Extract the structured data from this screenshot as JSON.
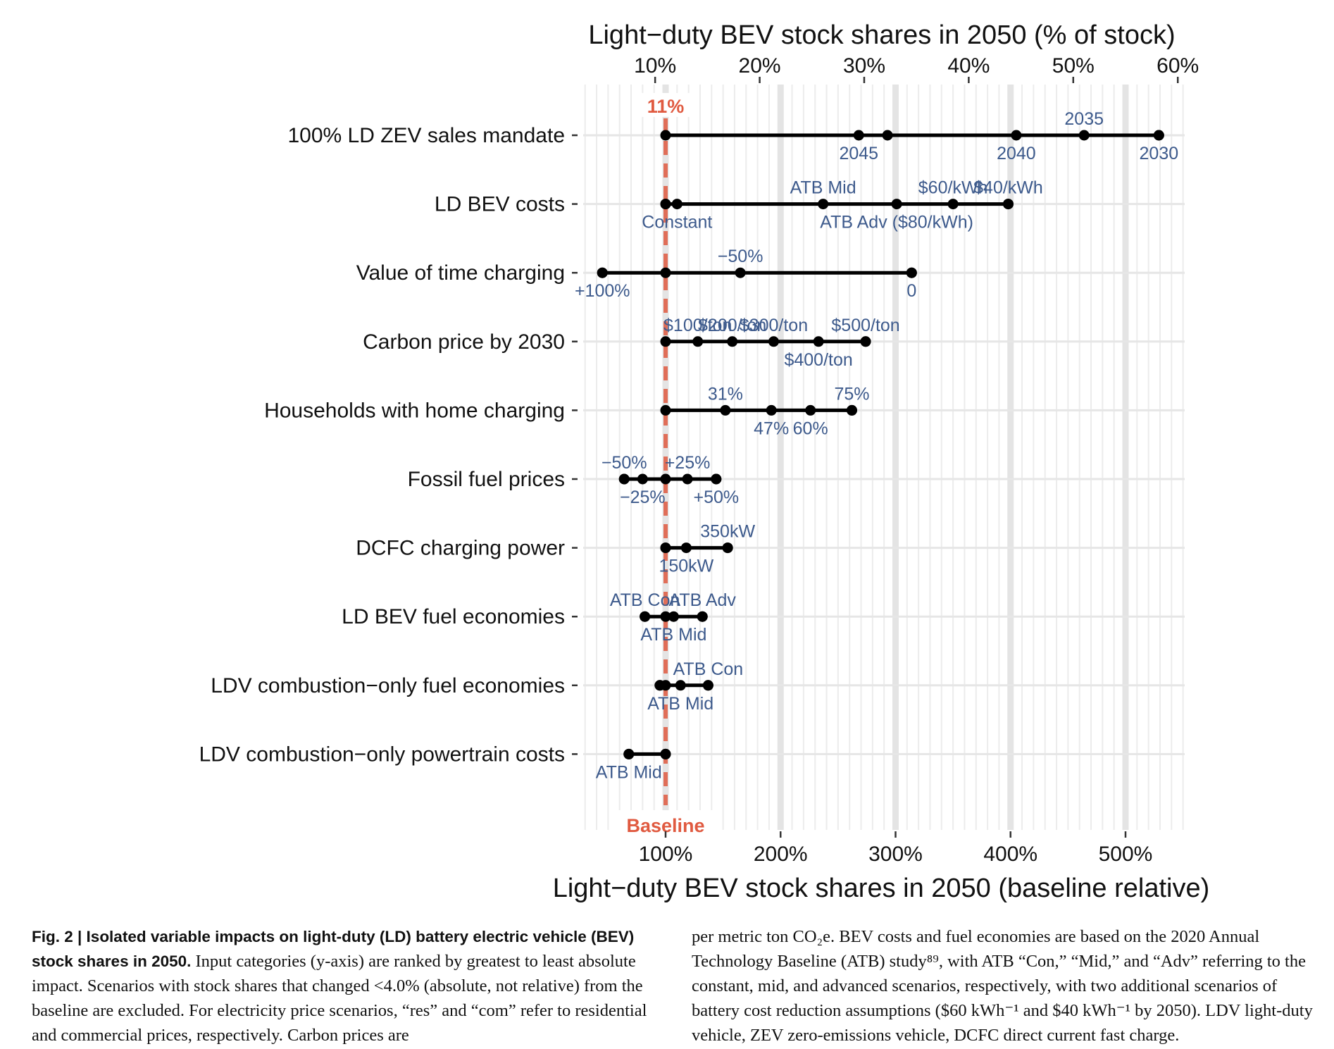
{
  "chart_data": {
    "type": "dot-range",
    "top_axis": {
      "title": "Light−duty BEV stock shares in 2050 (% of stock)",
      "ticks": [
        {
          "value": 10,
          "label": "10%"
        },
        {
          "value": 20,
          "label": "20%"
        },
        {
          "value": 30,
          "label": "30%"
        },
        {
          "value": 40,
          "label": "40%"
        },
        {
          "value": 50,
          "label": "50%"
        },
        {
          "value": 60,
          "label": "60%"
        }
      ]
    },
    "bottom_axis": {
      "title": "Light−duty BEV stock shares in 2050 (baseline relative)",
      "ticks": [
        {
          "value": 100,
          "label": "100%"
        },
        {
          "value": 200,
          "label": "200%"
        },
        {
          "value": 300,
          "label": "300%"
        },
        {
          "value": 400,
          "label": "400%"
        },
        {
          "value": 500,
          "label": "500%"
        }
      ],
      "range": [
        25,
        555
      ]
    },
    "baseline": {
      "value": 100,
      "top_label": "11%",
      "bottom_label": "Baseline",
      "color": "#e05a40"
    },
    "rows": [
      {
        "category": "100% LD ZEV sales mandate",
        "range": [
          100,
          529
        ],
        "points": [
          {
            "x": 268,
            "label": "2045",
            "pos": "below"
          },
          {
            "x": 293,
            "label": ""
          },
          {
            "x": 405,
            "label": "2040",
            "pos": "below"
          },
          {
            "x": 464,
            "label": "2035",
            "pos": "above"
          },
          {
            "x": 529,
            "label": "2030",
            "pos": "below"
          }
        ]
      },
      {
        "category": "LD BEV costs",
        "range": [
          100,
          398
        ],
        "points": [
          {
            "x": 100,
            "label": ""
          },
          {
            "x": 110,
            "label": "Constant",
            "pos": "below"
          },
          {
            "x": 237,
            "label": "ATB Mid",
            "pos": "above"
          },
          {
            "x": 301,
            "label": "ATB Adv ($80/kWh)",
            "pos": "below"
          },
          {
            "x": 350,
            "label": "$60/kWh",
            "pos": "above"
          },
          {
            "x": 398,
            "label": "$40/kWh",
            "pos": "above"
          }
        ]
      },
      {
        "category": "Value of time charging",
        "range": [
          45,
          314
        ],
        "points": [
          {
            "x": 45,
            "label": "+100%",
            "pos": "below"
          },
          {
            "x": 100,
            "label": ""
          },
          {
            "x": 165,
            "label": "−50%",
            "pos": "above"
          },
          {
            "x": 314,
            "label": "0",
            "pos": "below"
          }
        ]
      },
      {
        "category": "Carbon price by 2030",
        "range": [
          100,
          274
        ],
        "points": [
          {
            "x": 128,
            "label": "$100/ton",
            "pos": "above"
          },
          {
            "x": 158,
            "label": "$200/ton",
            "pos": "above"
          },
          {
            "x": 194,
            "label": "$300/ton",
            "pos": "above"
          },
          {
            "x": 233,
            "label": "$400/ton",
            "pos": "below"
          },
          {
            "x": 274,
            "label": "$500/ton",
            "pos": "above"
          }
        ]
      },
      {
        "category": "Households with home charging",
        "range": [
          100,
          262
        ],
        "points": [
          {
            "x": 152,
            "label": "31%",
            "pos": "above"
          },
          {
            "x": 192,
            "label": "47%",
            "pos": "below"
          },
          {
            "x": 226,
            "label": "60%",
            "pos": "below"
          },
          {
            "x": 262,
            "label": "75%",
            "pos": "above"
          }
        ]
      },
      {
        "category": "Fossil fuel prices",
        "range": [
          64,
          144
        ],
        "points": [
          {
            "x": 64,
            "label": "−50%",
            "pos": "above"
          },
          {
            "x": 80,
            "label": "−25%",
            "pos": "below"
          },
          {
            "x": 100,
            "label": ""
          },
          {
            "x": 119,
            "label": "+25%",
            "pos": "above"
          },
          {
            "x": 144,
            "label": "+50%",
            "pos": "below"
          }
        ]
      },
      {
        "category": "DCFC charging power",
        "range": [
          100,
          154
        ],
        "points": [
          {
            "x": 100,
            "label": ""
          },
          {
            "x": 118,
            "label": "150kW",
            "pos": "below"
          },
          {
            "x": 154,
            "label": "350kW",
            "pos": "above"
          }
        ]
      },
      {
        "category": "LD BEV fuel economies",
        "range": [
          82,
          132
        ],
        "points": [
          {
            "x": 82,
            "label": "ATB Con",
            "pos": "above"
          },
          {
            "x": 100,
            "label": ""
          },
          {
            "x": 107,
            "label": "ATB Mid",
            "pos": "below"
          },
          {
            "x": 132,
            "label": "ATB Adv",
            "pos": "above"
          }
        ]
      },
      {
        "category": "LDV combustion−only fuel economies",
        "range": [
          95,
          137
        ],
        "points": [
          {
            "x": 95,
            "label": ""
          },
          {
            "x": 100,
            "label": ""
          },
          {
            "x": 113,
            "label": "ATB Mid",
            "pos": "below"
          },
          {
            "x": 137,
            "label": "ATB Con",
            "pos": "above"
          }
        ]
      },
      {
        "category": "LDV combustion−only powertrain costs",
        "range": [
          68,
          100
        ],
        "points": [
          {
            "x": 68,
            "label": "ATB Mid",
            "pos": "below"
          },
          {
            "x": 100,
            "label": ""
          }
        ]
      }
    ],
    "grid": true
  },
  "caption": {
    "title": "Fig. 2 | Isolated variable impacts on light-duty (LD) battery electric vehicle (BEV) stock shares in 2050.",
    "left_text": "Input categories (y-axis) are ranked by greatest to least absolute impact. Scenarios with stock shares that changed <4.0% (absolute, not relative) from the baseline are excluded. For electricity price scenarios, “res” and “com” refer to residential and commercial prices, respectively. Carbon prices are",
    "right_text": "per metric ton CO₂e. BEV costs and fuel economies are based on the 2020 Annual Technology Baseline (ATB) study⁸⁹, with ATB “Con,” “Mid,” and “Adv” referring to the constant, mid, and advanced scenarios, respectively, with two additional scenarios of battery cost reduction assumptions ($60 kWh⁻¹ and $40 kWh⁻¹ by 2050). LDV light-duty vehicle, ZEV zero-emissions vehicle, DCFC direct current fast charge."
  }
}
